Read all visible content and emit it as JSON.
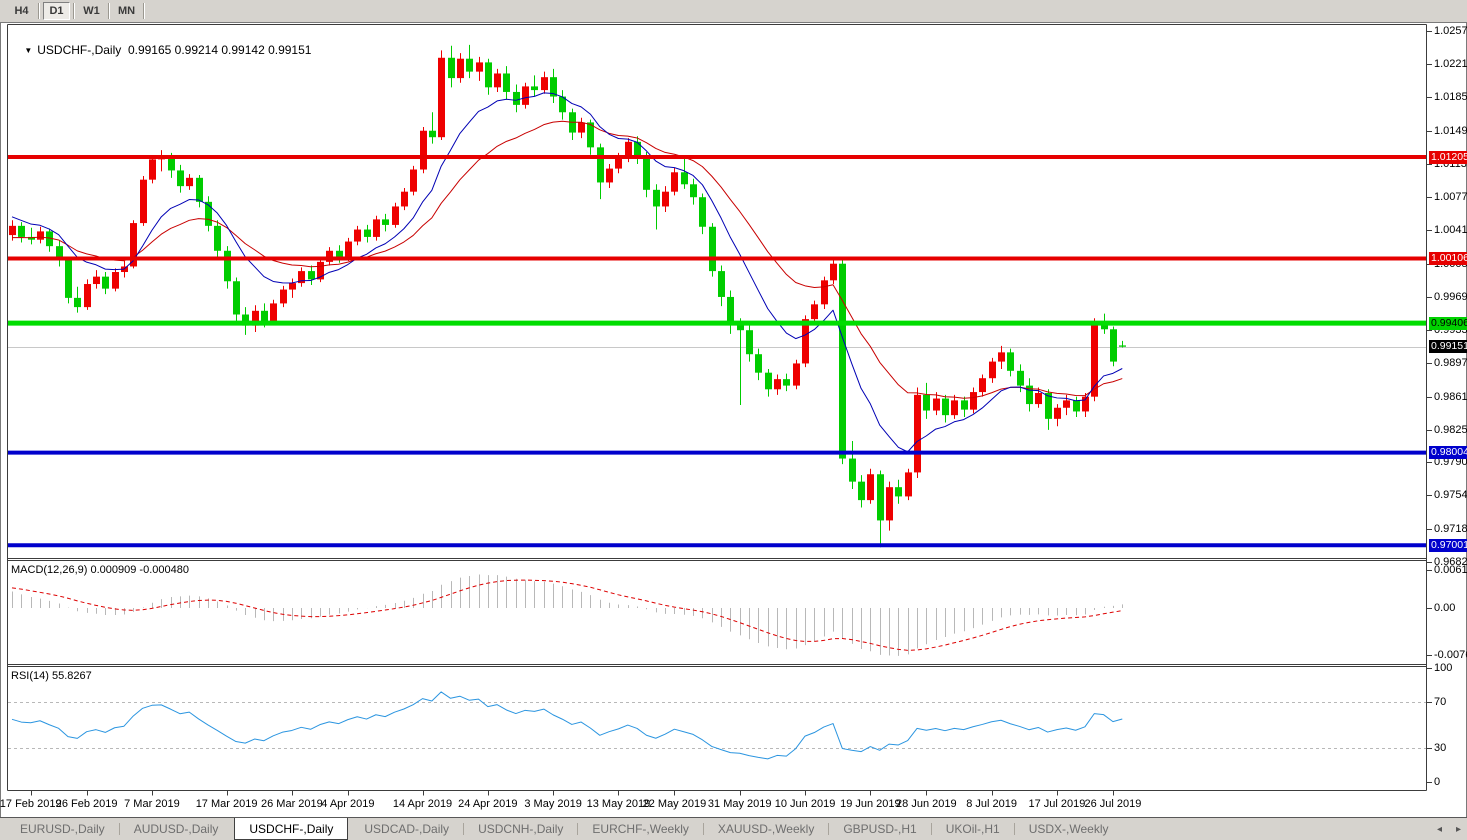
{
  "toolbar": {
    "timeframes": [
      {
        "label": "H4",
        "active": false
      },
      {
        "label": "D1",
        "active": true
      },
      {
        "label": "W1",
        "active": false
      },
      {
        "label": "MN",
        "active": false
      }
    ]
  },
  "chart": {
    "symbol_label": "USDCHF-,Daily",
    "ohlc_text": "0.99165 0.99214 0.99142 0.99151",
    "dropdown_arrow": "▼",
    "macd_label": "MACD(12,26,9) 0.000909 -0.000480",
    "rsi_label": "RSI(14) 55.8267"
  },
  "price_axis": {
    "labels": [
      "1.02570",
      "1.02210",
      "1.01850",
      "1.01490",
      "1.01130",
      "1.00770",
      "1.00410",
      "1.00050",
      "0.99690",
      "0.99330",
      "0.98970",
      "0.98610",
      "0.98250",
      "0.97900",
      "0.97540",
      "0.97180",
      "0.96820"
    ]
  },
  "macd_axis": {
    "labels": [
      "0.00613",
      "0.00",
      "-0.007612"
    ]
  },
  "rsi_axis": {
    "labels": [
      "100",
      "70",
      "30",
      "0"
    ]
  },
  "badges": [
    {
      "text": "1.01205",
      "price": 1.01205,
      "bg": "#e60000",
      "fg": "#ffffff"
    },
    {
      "text": "1.00106",
      "price": 1.00106,
      "bg": "#e60000",
      "fg": "#ffffff"
    },
    {
      "text": "0.99406",
      "price": 0.99406,
      "bg": "#00d200",
      "fg": "#000000"
    },
    {
      "text": "0.99151",
      "price": 0.99151,
      "bg": "#000000",
      "fg": "#ffffff"
    },
    {
      "text": "0.98004",
      "price": 0.98004,
      "bg": "#0000cc",
      "fg": "#ffffff"
    },
    {
      "text": "0.97001",
      "price": 0.97001,
      "bg": "#0000cc",
      "fg": "#ffffff"
    }
  ],
  "tabs": [
    {
      "label": "EURUSD-,Daily",
      "active": false
    },
    {
      "label": "AUDUSD-,Daily",
      "active": false
    },
    {
      "label": "USDCHF-,Daily",
      "active": true
    },
    {
      "label": "USDCAD-,Daily",
      "active": false
    },
    {
      "label": "USDCNH-,Daily",
      "active": false
    },
    {
      "label": "EURCHF-,Weekly",
      "active": false
    },
    {
      "label": "XAUUSD-,Weekly",
      "active": false
    },
    {
      "label": "GBPUSD-,H1",
      "active": false
    },
    {
      "label": "UKOil-,H1",
      "active": false
    },
    {
      "label": "USDX-,Weekly",
      "active": false
    }
  ],
  "tab_scroll_icons": {
    "left": "◂",
    "right": "▸"
  },
  "chart_data": {
    "type": "candlestick",
    "symbol": "USDCHF",
    "timeframe": "Daily",
    "current_ohlc": {
      "open": 0.99165,
      "high": 0.99214,
      "low": 0.99142,
      "close": 0.99151
    },
    "bull_color": "#ee0000",
    "bear_color": "#00cc00",
    "current_price_line": {
      "price": 0.99151,
      "color": "#c8c8c8"
    },
    "levels": [
      {
        "price": 1.01205,
        "color": "#e60000",
        "width": 4
      },
      {
        "price": 1.00106,
        "color": "#e60000",
        "width": 4
      },
      {
        "price": 0.99406,
        "color": "#00dd00",
        "width": 5
      },
      {
        "price": 0.98004,
        "color": "#0000cc",
        "width": 4
      },
      {
        "price": 0.97001,
        "color": "#0000cc",
        "width": 4
      }
    ],
    "ma_fast": {
      "type": "ema",
      "period": 10,
      "color": "#0000b4"
    },
    "ma_slow": {
      "type": "ema",
      "period": 21,
      "color": "#c80000"
    },
    "macd": {
      "fast": 12,
      "slow": 26,
      "signal": 9,
      "current_macd": 0.000909,
      "current_signal": -0.00048,
      "hist_color": "#b8b8b8",
      "signal_color": "#dd0000",
      "axis_max": 0.00613,
      "axis_min": -0.007612
    },
    "rsi": {
      "period": 14,
      "current": 55.8267,
      "color": "#2b95e0",
      "levels": [
        70,
        30
      ],
      "range": [
        0,
        100
      ]
    },
    "date_ticks": [
      {
        "label": "17 Feb 2019",
        "index": 2
      },
      {
        "label": "26 Feb 2019",
        "index": 8
      },
      {
        "label": "7 Mar 2019",
        "index": 15
      },
      {
        "label": "17 Mar 2019",
        "index": 23
      },
      {
        "label": "26 Mar 2019",
        "index": 30
      },
      {
        "label": "4 Apr 2019",
        "index": 36
      },
      {
        "label": "14 Apr 2019",
        "index": 44
      },
      {
        "label": "24 Apr 2019",
        "index": 51
      },
      {
        "label": "3 May 2019",
        "index": 58
      },
      {
        "label": "13 May 2019",
        "index": 65
      },
      {
        "label": "22 May 2019",
        "index": 71
      },
      {
        "label": "31 May 2019",
        "index": 78
      },
      {
        "label": "10 Jun 2019",
        "index": 85
      },
      {
        "label": "19 Jun 2019",
        "index": 92
      },
      {
        "label": "28 Jun 2019",
        "index": 98
      },
      {
        "label": "8 Jul 2019",
        "index": 105
      },
      {
        "label": "17 Jul 2019",
        "index": 112
      },
      {
        "label": "26 Jul 2019",
        "index": 118
      }
    ],
    "candles": [
      [
        1.0036,
        1.0052,
        1.003,
        1.0046
      ],
      [
        1.0046,
        1.005,
        1.0028,
        1.0034
      ],
      [
        1.0034,
        1.0044,
        1.0026,
        1.0031
      ],
      [
        1.0031,
        1.0045,
        1.0027,
        1.004
      ],
      [
        1.004,
        1.0043,
        1.0018,
        1.0024
      ],
      [
        1.0024,
        1.003,
        1.0002,
        1.0009
      ],
      [
        1.0009,
        1.0012,
        0.9962,
        0.9968
      ],
      [
        0.9968,
        0.998,
        0.9952,
        0.9958
      ],
      [
        0.9958,
        0.9988,
        0.9955,
        0.9983
      ],
      [
        0.9983,
        0.9998,
        0.9978,
        0.9991
      ],
      [
        0.9991,
        0.9996,
        0.9972,
        0.9978
      ],
      [
        0.9978,
        1.0,
        0.9975,
        0.9996
      ],
      [
        0.9996,
        1.0008,
        0.999,
        1.0002
      ],
      [
        1.0002,
        1.0052,
        1.0,
        1.0049
      ],
      [
        1.0049,
        1.01,
        1.0046,
        1.0096
      ],
      [
        1.0096,
        1.0122,
        1.0092,
        1.0118
      ],
      [
        1.0118,
        1.0128,
        1.0105,
        1.0121
      ],
      [
        1.0121,
        1.0125,
        1.0098,
        1.0106
      ],
      [
        1.0106,
        1.0112,
        1.0082,
        1.0089
      ],
      [
        1.0089,
        1.0102,
        1.0085,
        1.0098
      ],
      [
        1.0098,
        1.0101,
        1.0066,
        1.0072
      ],
      [
        1.0072,
        1.0078,
        1.004,
        1.0046
      ],
      [
        1.0046,
        1.0052,
        1.0012,
        1.0019
      ],
      [
        1.0019,
        1.0024,
        0.9978,
        0.9986
      ],
      [
        0.9986,
        0.999,
        0.9942,
        0.995
      ],
      [
        0.995,
        0.9958,
        0.9928,
        0.9938
      ],
      [
        0.9938,
        0.996,
        0.9931,
        0.9954
      ],
      [
        0.9954,
        0.9962,
        0.9936,
        0.9943
      ],
      [
        0.9943,
        0.9966,
        0.994,
        0.9962
      ],
      [
        0.9962,
        0.9981,
        0.9958,
        0.9977
      ],
      [
        0.9977,
        0.9989,
        0.9968,
        0.9984
      ],
      [
        0.9984,
        1.0001,
        0.998,
        0.9997
      ],
      [
        0.9997,
        1.0003,
        0.9982,
        0.9988
      ],
      [
        0.9988,
        1.0011,
        0.9985,
        1.0007
      ],
      [
        1.0007,
        1.0023,
        1.0003,
        1.0019
      ],
      [
        1.0019,
        1.0025,
        1.0006,
        1.0012
      ],
      [
        1.0012,
        1.0033,
        1.0008,
        1.0029
      ],
      [
        1.0029,
        1.0046,
        1.0025,
        1.0042
      ],
      [
        1.0042,
        1.0047,
        1.0028,
        1.0034
      ],
      [
        1.0034,
        1.0057,
        1.003,
        1.0053
      ],
      [
        1.0053,
        1.0059,
        1.004,
        1.0047
      ],
      [
        1.0047,
        1.0071,
        1.0044,
        1.0067
      ],
      [
        1.0067,
        1.0087,
        1.0063,
        1.0083
      ],
      [
        1.0083,
        1.0111,
        1.0079,
        1.0107
      ],
      [
        1.0107,
        1.0153,
        1.0103,
        1.0149
      ],
      [
        1.0149,
        1.0169,
        1.0135,
        1.0142
      ],
      [
        1.0142,
        1.0236,
        1.0139,
        1.0228
      ],
      [
        1.0228,
        1.0241,
        1.0196,
        1.0206
      ],
      [
        1.0206,
        1.0233,
        1.0201,
        1.0227
      ],
      [
        1.0227,
        1.0242,
        1.0206,
        1.0213
      ],
      [
        1.0213,
        1.0229,
        1.0203,
        1.0223
      ],
      [
        1.0223,
        1.0227,
        1.0188,
        1.0196
      ],
      [
        1.0196,
        1.0216,
        1.0191,
        1.0211
      ],
      [
        1.0211,
        1.0219,
        1.0183,
        1.0191
      ],
      [
        1.0191,
        1.0199,
        1.0169,
        1.0177
      ],
      [
        1.0177,
        1.0201,
        1.0173,
        1.0197
      ],
      [
        1.0197,
        1.0209,
        1.0186,
        1.0193
      ],
      [
        1.0193,
        1.0213,
        1.0189,
        1.0207
      ],
      [
        1.0207,
        1.0216,
        1.0179,
        1.0186
      ],
      [
        1.0186,
        1.0193,
        1.0161,
        1.0169
      ],
      [
        1.0169,
        1.0173,
        1.0139,
        1.0147
      ],
      [
        1.0147,
        1.0163,
        1.0141,
        1.0158
      ],
      [
        1.0158,
        1.0161,
        1.0123,
        1.0131
      ],
      [
        1.0131,
        1.0135,
        1.0075,
        1.0093
      ],
      [
        1.0093,
        1.0113,
        1.0087,
        1.0108
      ],
      [
        1.0108,
        1.0125,
        1.0103,
        1.012
      ],
      [
        1.012,
        1.0141,
        1.0115,
        1.0137
      ],
      [
        1.0137,
        1.0143,
        1.0113,
        1.0121
      ],
      [
        1.0121,
        1.0126,
        1.0077,
        1.0085
      ],
      [
        1.0085,
        1.0091,
        1.0042,
        1.0067
      ],
      [
        1.0067,
        1.0089,
        1.0061,
        1.0083
      ],
      [
        1.0083,
        1.0109,
        1.0079,
        1.0104
      ],
      [
        1.0104,
        1.0121,
        1.0086,
        1.0091
      ],
      [
        1.0091,
        1.0097,
        1.0069,
        1.0077
      ],
      [
        1.0077,
        1.0081,
        1.0037,
        1.0045
      ],
      [
        1.0045,
        1.0049,
        0.9991,
        0.9997
      ],
      [
        0.9997,
        1.0003,
        0.9959,
        0.9969
      ],
      [
        0.9969,
        0.9976,
        0.9929,
        0.9939
      ],
      [
        0.9939,
        0.9946,
        0.9852,
        0.9933
      ],
      [
        0.9933,
        0.9939,
        0.9899,
        0.9907
      ],
      [
        0.9907,
        0.9913,
        0.9879,
        0.9887
      ],
      [
        0.9887,
        0.9891,
        0.9861,
        0.9869
      ],
      [
        0.9869,
        0.9885,
        0.9863,
        0.988
      ],
      [
        0.988,
        0.9886,
        0.9867,
        0.9873
      ],
      [
        0.9873,
        0.9901,
        0.9869,
        0.9897
      ],
      [
        0.9897,
        0.9949,
        0.9893,
        0.9945
      ],
      [
        0.9945,
        0.9965,
        0.9939,
        0.9961
      ],
      [
        0.9961,
        0.9991,
        0.9956,
        0.9987
      ],
      [
        0.9987,
        1.0011,
        0.9983,
        1.0005
      ],
      [
        1.0005,
        1.0009,
        0.9788,
        0.9794
      ],
      [
        0.9794,
        0.9813,
        0.9761,
        0.9769
      ],
      [
        0.9769,
        0.9776,
        0.9741,
        0.9749
      ],
      [
        0.9749,
        0.9783,
        0.9745,
        0.9777
      ],
      [
        0.9777,
        0.9781,
        0.9698,
        0.9727
      ],
      [
        0.9727,
        0.9769,
        0.9716,
        0.9763
      ],
      [
        0.9763,
        0.9771,
        0.9745,
        0.9753
      ],
      [
        0.9753,
        0.9783,
        0.9749,
        0.9779
      ],
      [
        0.9779,
        0.9871,
        0.9773,
        0.9863
      ],
      [
        0.9863,
        0.9876,
        0.9837,
        0.9846
      ],
      [
        0.9846,
        0.9866,
        0.9841,
        0.9859
      ],
      [
        0.9859,
        0.9863,
        0.9833,
        0.9841
      ],
      [
        0.9841,
        0.9863,
        0.9837,
        0.9857
      ],
      [
        0.9857,
        0.9861,
        0.9839,
        0.9847
      ],
      [
        0.9847,
        0.9871,
        0.9843,
        0.9866
      ],
      [
        0.9866,
        0.9885,
        0.9861,
        0.9881
      ],
      [
        0.9881,
        0.9903,
        0.9876,
        0.9899
      ],
      [
        0.9899,
        0.9916,
        0.9891,
        0.9909
      ],
      [
        0.9909,
        0.9913,
        0.9883,
        0.9889
      ],
      [
        0.9889,
        0.9896,
        0.9866,
        0.9873
      ],
      [
        0.9873,
        0.9881,
        0.9845,
        0.9853
      ],
      [
        0.9853,
        0.9871,
        0.9849,
        0.9865
      ],
      [
        0.9865,
        0.9869,
        0.9825,
        0.9837
      ],
      [
        0.9837,
        0.9853,
        0.9829,
        0.9849
      ],
      [
        0.9849,
        0.9863,
        0.9841,
        0.9857
      ],
      [
        0.9857,
        0.9861,
        0.9839,
        0.9845
      ],
      [
        0.9845,
        0.9865,
        0.9839,
        0.9861
      ],
      [
        0.9861,
        0.9946,
        0.9856,
        0.9939
      ],
      [
        0.9939,
        0.9951,
        0.9929,
        0.9934
      ],
      [
        0.9934,
        0.9937,
        0.9894,
        0.9899
      ],
      [
        0.99165,
        0.99214,
        0.99142,
        0.99151
      ]
    ]
  }
}
